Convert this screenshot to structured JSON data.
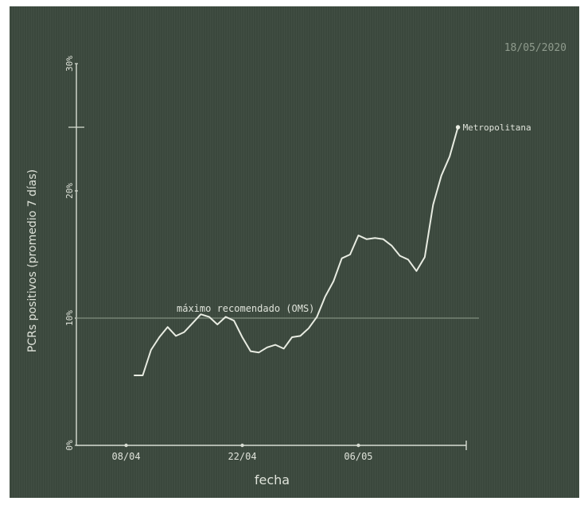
{
  "chart_data": {
    "type": "line",
    "title": "",
    "date_stamp": "18/05/2020",
    "xlabel": "fecha",
    "ylabel": "PCRs positivos (promedio 7 días)",
    "x_ticks": [
      "08/04",
      "22/04",
      "06/05"
    ],
    "y_ticks": [
      "0%",
      "10%",
      "20%",
      "30%"
    ],
    "ylim": [
      0,
      30
    ],
    "reference_line": {
      "label": "máximo recomendado (OMS)",
      "value": 10
    },
    "series": [
      {
        "name": "Metropolitana",
        "color": "#e8ece2",
        "points": [
          [
            "2020-04-09",
            5.5
          ],
          [
            "2020-04-10",
            5.5
          ],
          [
            "2020-04-11",
            7.5
          ],
          [
            "2020-04-12",
            8.5
          ],
          [
            "2020-04-13",
            9.3
          ],
          [
            "2020-04-14",
            8.6
          ],
          [
            "2020-04-15",
            8.9
          ],
          [
            "2020-04-16",
            9.6
          ],
          [
            "2020-04-17",
            10.3
          ],
          [
            "2020-04-18",
            10.1
          ],
          [
            "2020-04-19",
            9.5
          ],
          [
            "2020-04-20",
            10.1
          ],
          [
            "2020-04-21",
            9.8
          ],
          [
            "2020-04-22",
            8.5
          ],
          [
            "2020-04-23",
            7.4
          ],
          [
            "2020-04-24",
            7.3
          ],
          [
            "2020-04-25",
            7.7
          ],
          [
            "2020-04-26",
            7.9
          ],
          [
            "2020-04-27",
            7.6
          ],
          [
            "2020-04-28",
            8.5
          ],
          [
            "2020-04-29",
            8.6
          ],
          [
            "2020-04-30",
            9.2
          ],
          [
            "2020-05-01",
            10.1
          ],
          [
            "2020-05-02",
            11.7
          ],
          [
            "2020-05-03",
            12.9
          ],
          [
            "2020-05-04",
            14.7
          ],
          [
            "2020-05-05",
            15.0
          ],
          [
            "2020-05-06",
            16.5
          ],
          [
            "2020-05-07",
            16.2
          ],
          [
            "2020-05-08",
            16.3
          ],
          [
            "2020-05-09",
            16.2
          ],
          [
            "2020-05-10",
            15.7
          ],
          [
            "2020-05-11",
            14.9
          ],
          [
            "2020-05-12",
            14.6
          ],
          [
            "2020-05-13",
            13.7
          ],
          [
            "2020-05-14",
            14.8
          ],
          [
            "2020-05-15",
            18.9
          ],
          [
            "2020-05-16",
            21.2
          ],
          [
            "2020-05-17",
            22.7
          ],
          [
            "2020-05-18",
            25.0
          ]
        ]
      }
    ]
  },
  "colors": {
    "background": "#3d4a3f",
    "axis": "#d8ddd3",
    "text": "#dfe3da",
    "reference_line": "#7f8e7f"
  }
}
